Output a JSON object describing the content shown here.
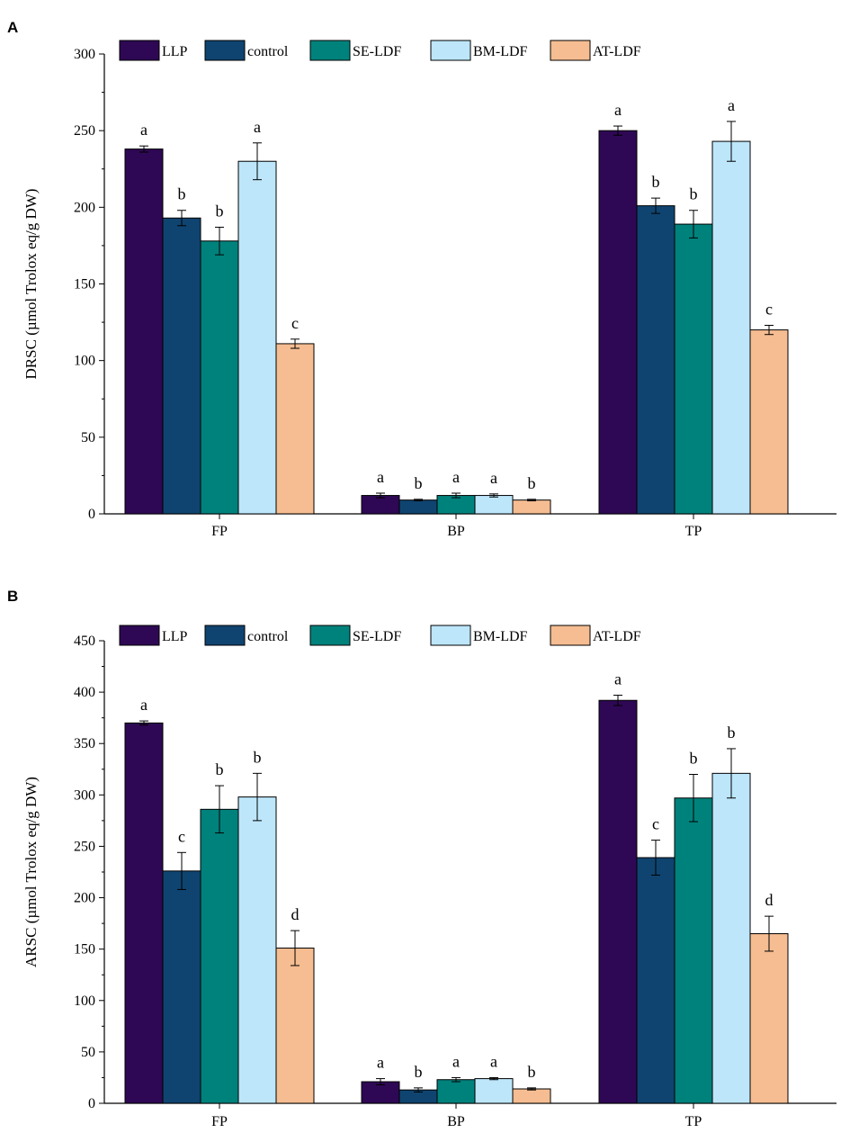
{
  "chart_data": [
    {
      "panel": "A",
      "type": "bar",
      "title": "",
      "xlabel": "",
      "ylabel": "DRSC (µmol Trolox eq/g DW)",
      "ylim": [
        0,
        300
      ],
      "yticks": [
        0,
        50,
        100,
        150,
        200,
        250,
        300
      ],
      "grid": false,
      "legend_position": "top",
      "categories": [
        "FP",
        "BP",
        "TP"
      ],
      "series": [
        {
          "name": "LLP",
          "color": "#2e0854",
          "values": [
            238,
            12,
            250
          ],
          "errors": [
            2,
            1.5,
            3
          ],
          "letters": [
            "a",
            "a",
            "a"
          ]
        },
        {
          "name": "control",
          "color": "#0f4470",
          "values": [
            193,
            9,
            201
          ],
          "errors": [
            5,
            0.5,
            5
          ],
          "letters": [
            "b",
            "b",
            "b"
          ]
        },
        {
          "name": "SE-LDF",
          "color": "#00827c",
          "values": [
            178,
            12,
            189
          ],
          "errors": [
            9,
            1.5,
            9
          ],
          "letters": [
            "b",
            "a",
            "b"
          ]
        },
        {
          "name": "BM-LDF",
          "color": "#bde6fa",
          "values": [
            230,
            12,
            243
          ],
          "errors": [
            12,
            1,
            13
          ],
          "letters": [
            "a",
            "a",
            "a"
          ]
        },
        {
          "name": "AT-LDF",
          "color": "#f5bd91",
          "values": [
            111,
            9,
            120
          ],
          "errors": [
            3,
            0.5,
            3
          ],
          "letters": [
            "c",
            "b",
            "c"
          ]
        }
      ]
    },
    {
      "panel": "B",
      "type": "bar",
      "title": "",
      "xlabel": "",
      "ylabel": "ARSC (µmol Trolox eq/g DW)",
      "ylim": [
        0,
        450
      ],
      "yticks": [
        0,
        50,
        100,
        150,
        200,
        250,
        300,
        350,
        400,
        450
      ],
      "grid": false,
      "legend_position": "top",
      "categories": [
        "FP",
        "BP",
        "TP"
      ],
      "series": [
        {
          "name": "LLP",
          "color": "#2e0854",
          "values": [
            370,
            21,
            392
          ],
          "errors": [
            2,
            3,
            5
          ],
          "letters": [
            "a",
            "a",
            "a"
          ]
        },
        {
          "name": "control",
          "color": "#0f4470",
          "values": [
            226,
            13,
            239
          ],
          "errors": [
            18,
            2,
            17
          ],
          "letters": [
            "c",
            "b",
            "c"
          ]
        },
        {
          "name": "SE-LDF",
          "color": "#00827c",
          "values": [
            286,
            23,
            297
          ],
          "errors": [
            23,
            2,
            23
          ],
          "letters": [
            "b",
            "a",
            "b"
          ]
        },
        {
          "name": "BM-LDF",
          "color": "#bde6fa",
          "values": [
            298,
            24,
            321
          ],
          "errors": [
            23,
            1,
            24
          ],
          "letters": [
            "b",
            "a",
            "b"
          ]
        },
        {
          "name": "AT-LDF",
          "color": "#f5bd91",
          "values": [
            151,
            14,
            165
          ],
          "errors": [
            17,
            1,
            17
          ],
          "letters": [
            "d",
            "b",
            "d"
          ]
        }
      ]
    }
  ]
}
